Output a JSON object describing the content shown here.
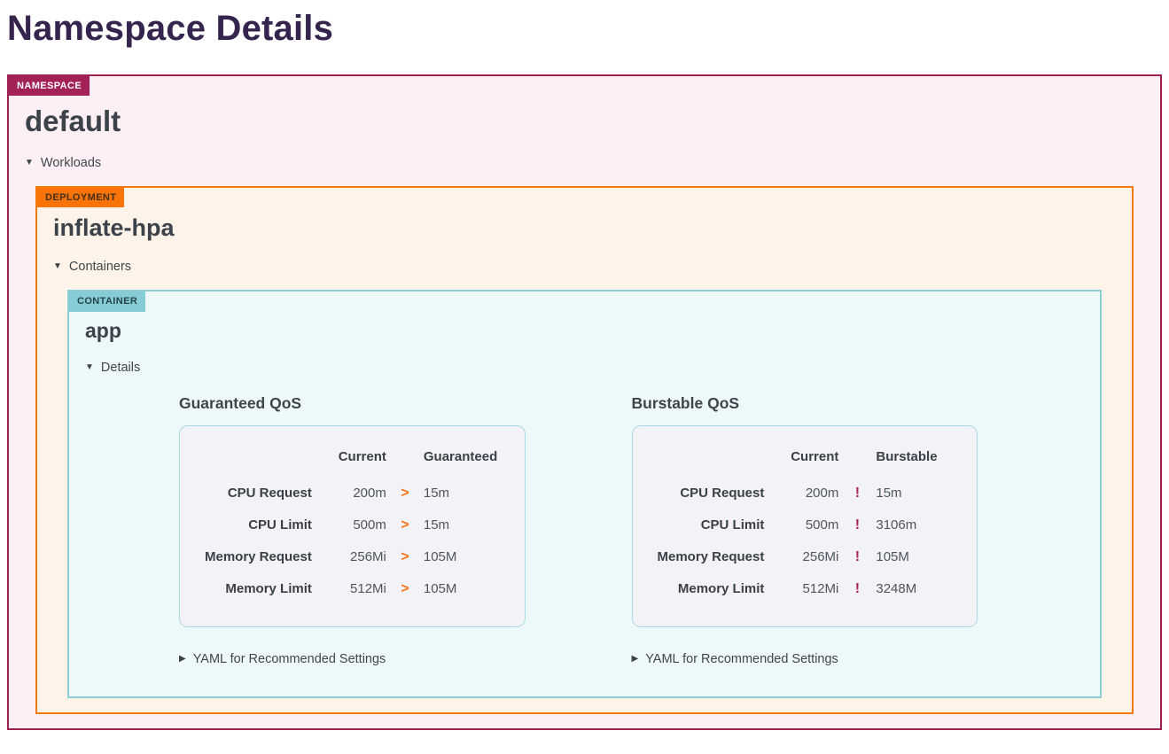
{
  "title": "Namespace Details",
  "icons": {
    "expanded_triangle": "▼",
    "collapsed_triangle": "▶"
  },
  "colors": {
    "namespace_accent": "#a32157",
    "deployment_accent": "#f97306",
    "container_accent": "#85ccd5",
    "greater_than_icon": "#f97316",
    "warning_icon": "#ad2459",
    "title_text": "#35244e"
  },
  "namespace": {
    "badge": "NAMESPACE",
    "name": "default",
    "toggle": "Workloads",
    "deployment": {
      "badge": "DEPLOYMENT",
      "name": "inflate-hpa",
      "toggle": "Containers",
      "container": {
        "badge": "CONTAINER",
        "name": "app",
        "toggle": "Details",
        "panels": [
          {
            "title": "Guaranteed QoS",
            "columns": [
              "Current",
              "Guaranteed"
            ],
            "icon": {
              "name": "greater-than-icon",
              "glyph": ">",
              "color": "#f97316"
            },
            "rows": [
              {
                "label": "CPU Request",
                "current": "200m",
                "recommended": "15m"
              },
              {
                "label": "CPU Limit",
                "current": "500m",
                "recommended": "15m"
              },
              {
                "label": "Memory Request",
                "current": "256Mi",
                "recommended": "105M"
              },
              {
                "label": "Memory Limit",
                "current": "512Mi",
                "recommended": "105M"
              }
            ],
            "yaml_toggle": "YAML for Recommended Settings"
          },
          {
            "title": "Burstable QoS",
            "columns": [
              "Current",
              "Burstable"
            ],
            "icon": {
              "name": "exclamation-icon",
              "glyph": "!",
              "color": "#ad2459"
            },
            "rows": [
              {
                "label": "CPU Request",
                "current": "200m",
                "recommended": "15m"
              },
              {
                "label": "CPU Limit",
                "current": "500m",
                "recommended": "3106m"
              },
              {
                "label": "Memory Request",
                "current": "256Mi",
                "recommended": "105M"
              },
              {
                "label": "Memory Limit",
                "current": "512Mi",
                "recommended": "3248M"
              }
            ],
            "yaml_toggle": "YAML for Recommended Settings"
          }
        ]
      }
    }
  }
}
